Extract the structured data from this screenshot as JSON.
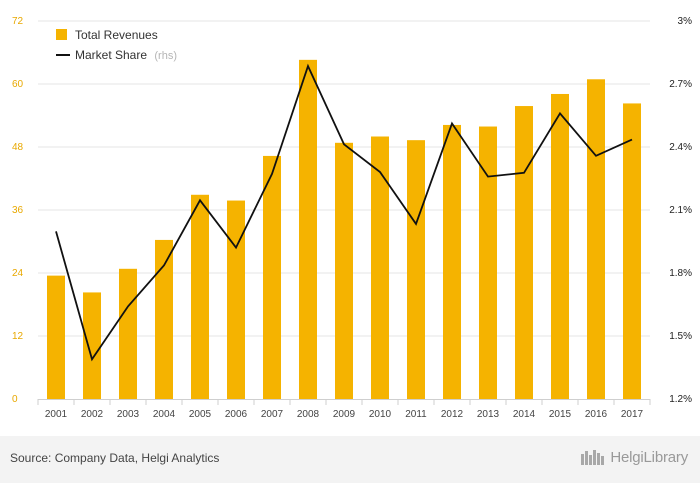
{
  "chart_data": {
    "type": "bar",
    "categories": [
      "2001",
      "2002",
      "2003",
      "2004",
      "2005",
      "2006",
      "2007",
      "2008",
      "2009",
      "2010",
      "2011",
      "2012",
      "2013",
      "2014",
      "2015",
      "2016",
      "2017"
    ],
    "series": [
      {
        "name": "Total Revenues",
        "type": "bar",
        "axis": "left",
        "color": "#f5b300",
        "values": [
          23.5,
          20.3,
          24.8,
          30.3,
          38.9,
          37.8,
          46.3,
          64.6,
          48.8,
          50.0,
          49.3,
          52.2,
          51.9,
          55.8,
          58.1,
          60.9,
          56.3
        ]
      },
      {
        "name": "Market Share",
        "name_suffix": "(rhs)",
        "type": "line",
        "axis": "right",
        "color": "#111111",
        "values": [
          1.998,
          1.389,
          1.641,
          1.836,
          2.146,
          1.921,
          2.272,
          2.785,
          2.413,
          2.281,
          2.034,
          2.512,
          2.259,
          2.277,
          2.56,
          2.358,
          2.435
        ]
      }
    ],
    "left_axis": {
      "min": 0,
      "max": 72,
      "ticks": [
        "0",
        "12",
        "24",
        "36",
        "48",
        "60",
        "72"
      ]
    },
    "right_axis": {
      "min": 1.2,
      "max": 3.0,
      "ticks": [
        "1.2%",
        "1.5%",
        "1.8%",
        "2.1%",
        "2.4%",
        "2.7%",
        "3%"
      ]
    },
    "grid": "horizontal",
    "legend_position": "top-left"
  },
  "footer": {
    "source": "Source: Company Data, Helgi Analytics",
    "brand": "HelgiLibrary"
  }
}
